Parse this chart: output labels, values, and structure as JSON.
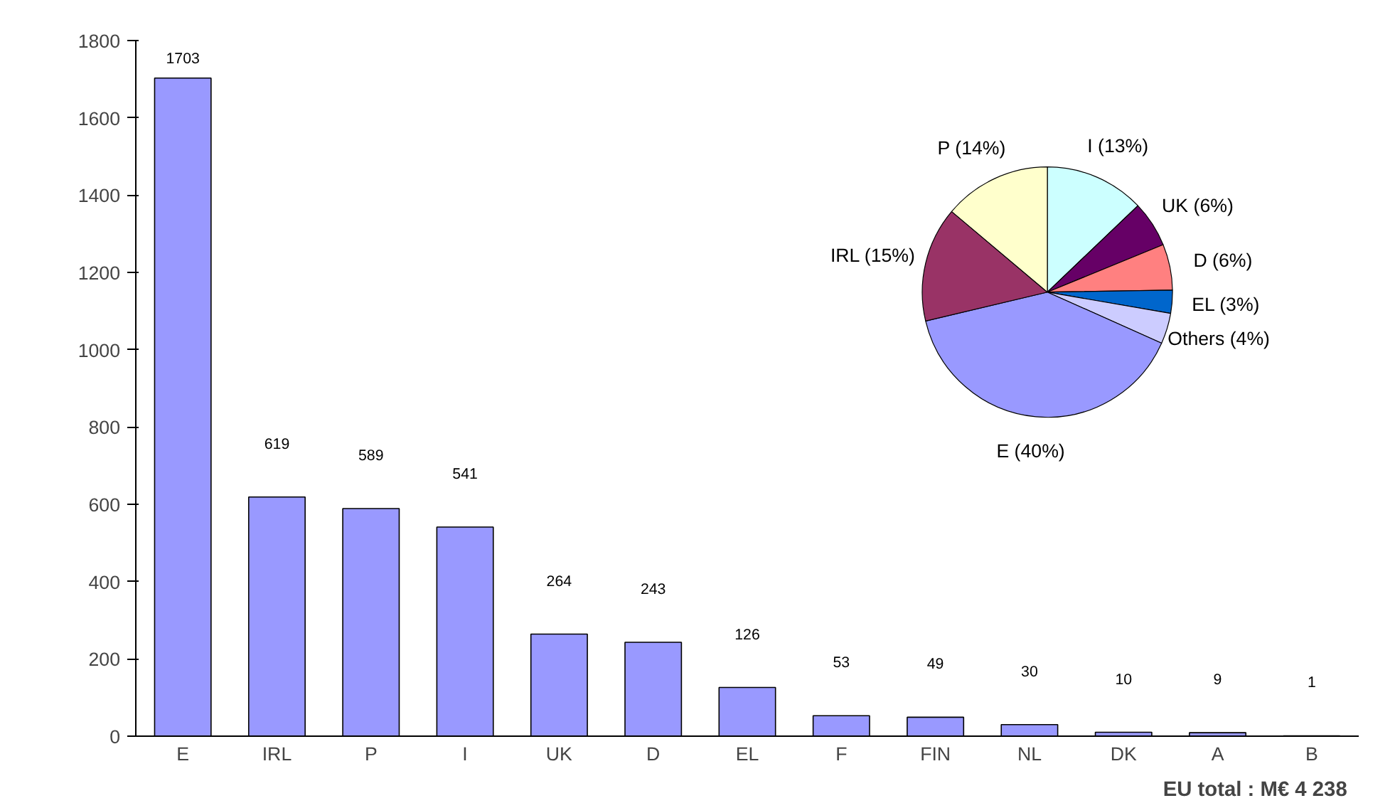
{
  "chart_data": [
    {
      "type": "bar",
      "categories": [
        "E",
        "IRL",
        "P",
        "I",
        "UK",
        "D",
        "EL",
        "F",
        "FIN",
        "NL",
        "DK",
        "A",
        "B"
      ],
      "values": [
        1703,
        619,
        589,
        541,
        264,
        243,
        126,
        53,
        49,
        30,
        10,
        9,
        1
      ],
      "color": "#9999ff",
      "ylim": [
        0,
        1800
      ],
      "yticks": [
        0,
        200,
        400,
        600,
        800,
        1000,
        1200,
        1400,
        1600,
        1800
      ],
      "grid": false,
      "data_labels": true,
      "annotations": [
        "EU total :  M€  4 238"
      ]
    },
    {
      "type": "pie",
      "categories": [
        "I",
        "UK",
        "D",
        "EL",
        "Others",
        "E",
        "IRL",
        "P"
      ],
      "values": [
        13,
        6,
        6,
        3,
        4,
        40,
        15,
        14
      ],
      "value_labels": [
        "(13%)",
        "(6%)",
        "(6%)",
        "(3%)",
        "(4%)",
        "(40%)",
        "(15%)",
        "(14%)"
      ],
      "colors": [
        "#ccffff",
        "#660066",
        "#ff8080",
        "#0066cc",
        "#ccccff",
        "#9999ff",
        "#993366",
        "#ffffcc"
      ]
    }
  ]
}
